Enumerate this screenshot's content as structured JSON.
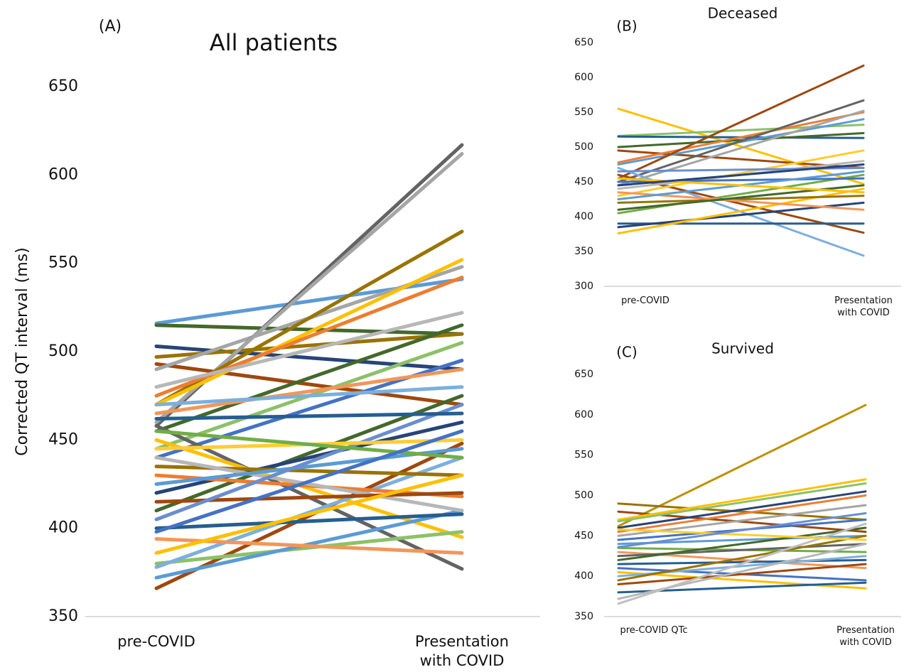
{
  "chart_data": [
    {
      "type": "line",
      "panel_label": "(A)",
      "title": "All patients",
      "y_label": "Corrected QT interval (ms)",
      "categories": [
        "pre-COVID",
        "Presentation with COVID"
      ],
      "ylim": [
        350,
        650
      ],
      "yticks": [
        350,
        400,
        450,
        500,
        550,
        600,
        650
      ],
      "grid": false,
      "series": [
        {
          "color": "#5b9bd5",
          "values": [
            516,
            541
          ]
        },
        {
          "color": "#43682b",
          "values": [
            515,
            510
          ]
        },
        {
          "color": "#264478",
          "values": [
            503,
            490
          ]
        },
        {
          "color": "#997300",
          "values": [
            497,
            510
          ]
        },
        {
          "color": "#9e480e",
          "values": [
            493,
            470
          ]
        },
        {
          "color": "#a5a5a5",
          "values": [
            490,
            548
          ]
        },
        {
          "color": "#636363",
          "values": [
            458,
            617
          ]
        },
        {
          "color": "#a5a5a5",
          "values": [
            460,
            612
          ]
        },
        {
          "color": "#997300",
          "values": [
            470,
            568
          ]
        },
        {
          "color": "#ffc000",
          "values": [
            470,
            552
          ]
        },
        {
          "color": "#ed7d31",
          "values": [
            475,
            542
          ]
        },
        {
          "color": "#b7b7b7",
          "values": [
            480,
            522
          ]
        },
        {
          "color": "#43682b",
          "values": [
            455,
            515
          ]
        },
        {
          "color": "#8cc168",
          "values": [
            445,
            505
          ]
        },
        {
          "color": "#4472c4",
          "values": [
            440,
            495
          ]
        },
        {
          "color": "#f1975a",
          "values": [
            465,
            490
          ]
        },
        {
          "color": "#636363",
          "values": [
            458,
            377
          ]
        },
        {
          "color": "#ffc000",
          "values": [
            450,
            395
          ]
        },
        {
          "color": "#9e480e",
          "values": [
            366,
            448
          ]
        },
        {
          "color": "#8cc168",
          "values": [
            380,
            398
          ]
        },
        {
          "color": "#7cafdd",
          "values": [
            378,
            440
          ]
        },
        {
          "color": "#5b9bd5",
          "values": [
            372,
            410
          ]
        },
        {
          "color": "#f1975a",
          "values": [
            394,
            386
          ]
        },
        {
          "color": "#255e91",
          "values": [
            400,
            408
          ]
        },
        {
          "color": "#43682b",
          "values": [
            410,
            475
          ]
        },
        {
          "color": "#264478",
          "values": [
            420,
            460
          ]
        },
        {
          "color": "#ed7d31",
          "values": [
            430,
            418
          ]
        },
        {
          "color": "#997300",
          "values": [
            435,
            430
          ]
        },
        {
          "color": "#b7b7b7",
          "values": [
            440,
            410
          ]
        },
        {
          "color": "#5b9bd5",
          "values": [
            425,
            445
          ]
        },
        {
          "color": "#9e480e",
          "values": [
            415,
            420
          ]
        },
        {
          "color": "#698ed0",
          "values": [
            405,
            470
          ]
        },
        {
          "color": "#ffcd33",
          "values": [
            445,
            450
          ]
        },
        {
          "color": "#70ad47",
          "values": [
            455,
            440
          ]
        },
        {
          "color": "#255e91",
          "values": [
            462,
            465
          ]
        },
        {
          "color": "#ffc000",
          "values": [
            386,
            430
          ]
        },
        {
          "color": "#4472c4",
          "values": [
            398,
            455
          ]
        },
        {
          "color": "#7cafdd",
          "values": [
            470,
            480
          ]
        }
      ]
    },
    {
      "type": "line",
      "panel_label": "(B)",
      "title": "Deceased",
      "categories": [
        "pre-COVID",
        "Presentation with COVID"
      ],
      "ylim": [
        300,
        650
      ],
      "yticks": [
        300,
        350,
        400,
        450,
        500,
        550,
        600,
        650
      ],
      "grid": false,
      "series": [
        {
          "color": "#ffc000",
          "values": [
            555,
            447
          ]
        },
        {
          "color": "#8cc168",
          "values": [
            516,
            532
          ]
        },
        {
          "color": "#255e91",
          "values": [
            515,
            513
          ]
        },
        {
          "color": "#43682b",
          "values": [
            500,
            520
          ]
        },
        {
          "color": "#9e480e",
          "values": [
            495,
            470
          ]
        },
        {
          "color": "#ed7d31",
          "values": [
            478,
            550
          ]
        },
        {
          "color": "#5b9bd5",
          "values": [
            475,
            540
          ]
        },
        {
          "color": "#9e480e",
          "values": [
            455,
            617
          ]
        },
        {
          "color": "#636363",
          "values": [
            450,
            567
          ]
        },
        {
          "color": "#a5a5a5",
          "values": [
            445,
            552
          ]
        },
        {
          "color": "#7cafdd",
          "values": [
            470,
            344
          ]
        },
        {
          "color": "#9e480e",
          "values": [
            460,
            377
          ]
        },
        {
          "color": "#255e91",
          "values": [
            390,
            390
          ]
        },
        {
          "color": "#264478",
          "values": [
            385,
            420
          ]
        },
        {
          "color": "#ffc000",
          "values": [
            376,
            440
          ]
        },
        {
          "color": "#70ad47",
          "values": [
            405,
            460
          ]
        },
        {
          "color": "#997300",
          "values": [
            420,
            430
          ]
        },
        {
          "color": "#ffcd33",
          "values": [
            430,
            495
          ]
        },
        {
          "color": "#b7b7b7",
          "values": [
            440,
            480
          ]
        },
        {
          "color": "#4472c4",
          "values": [
            450,
            455
          ]
        },
        {
          "color": "#698ed0",
          "values": [
            465,
            470
          ]
        },
        {
          "color": "#f1975a",
          "values": [
            435,
            410
          ]
        },
        {
          "color": "#43682b",
          "values": [
            410,
            445
          ]
        },
        {
          "color": "#5b9bd5",
          "values": [
            425,
            465
          ]
        },
        {
          "color": "#ffc000",
          "values": [
            455,
            435
          ]
        },
        {
          "color": "#264478",
          "values": [
            445,
            475
          ]
        }
      ]
    },
    {
      "type": "line",
      "panel_label": "(C)",
      "title": "Survived",
      "categories": [
        "pre-COVID QTc",
        "Presentation with COVID"
      ],
      "ylim": [
        350,
        650
      ],
      "yticks": [
        350,
        400,
        450,
        500,
        550,
        600,
        650
      ],
      "grid": false,
      "series": [
        {
          "color": "#bf8f00",
          "values": [
            462,
            612
          ]
        },
        {
          "color": "#997300",
          "values": [
            490,
            470
          ]
        },
        {
          "color": "#9e480e",
          "values": [
            480,
            455
          ]
        },
        {
          "color": "#ffc000",
          "values": [
            470,
            520
          ]
        },
        {
          "color": "#8cc168",
          "values": [
            468,
            515
          ]
        },
        {
          "color": "#264478",
          "values": [
            460,
            505
          ]
        },
        {
          "color": "#ed7d31",
          "values": [
            455,
            500
          ]
        },
        {
          "color": "#a5a5a5",
          "values": [
            450,
            488
          ]
        },
        {
          "color": "#4472c4",
          "values": [
            445,
            470
          ]
        },
        {
          "color": "#5b9bd5",
          "values": [
            440,
            450
          ]
        },
        {
          "color": "#70ad47",
          "values": [
            435,
            430
          ]
        },
        {
          "color": "#f1975a",
          "values": [
            430,
            410
          ]
        },
        {
          "color": "#636363",
          "values": [
            425,
            440
          ]
        },
        {
          "color": "#43682b",
          "values": [
            420,
            460
          ]
        },
        {
          "color": "#255e91",
          "values": [
            415,
            420
          ]
        },
        {
          "color": "#4472c4",
          "values": [
            410,
            395
          ]
        },
        {
          "color": "#ffc000",
          "values": [
            405,
            385
          ]
        },
        {
          "color": "#7cafdd",
          "values": [
            400,
            425
          ]
        },
        {
          "color": "#997300",
          "values": [
            395,
            450
          ]
        },
        {
          "color": "#9e480e",
          "values": [
            390,
            415
          ]
        },
        {
          "color": "#255e91",
          "values": [
            380,
            392
          ]
        },
        {
          "color": "#b7b7b7",
          "values": [
            372,
            440
          ]
        },
        {
          "color": "#bfbfbf",
          "values": [
            366,
            465
          ]
        },
        {
          "color": "#ffcd33",
          "values": [
            458,
            445
          ]
        },
        {
          "color": "#698ed0",
          "values": [
            436,
            478
          ]
        }
      ]
    }
  ]
}
